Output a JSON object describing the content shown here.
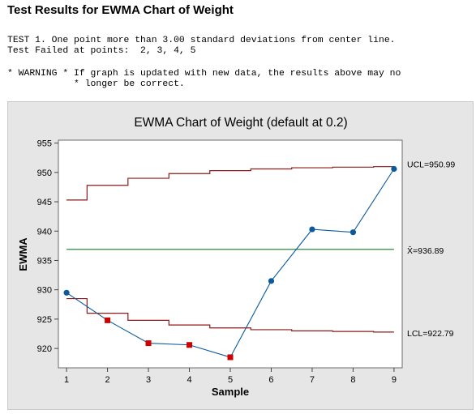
{
  "header": {
    "title": "Test Results for EWMA Chart of Weight",
    "test_line1": "TEST 1. One point more than 3.00 standard deviations from center line.",
    "test_line2": "Test Failed at points:  2, 3, 4, 5",
    "warning_line1": "* WARNING * If graph is updated with new data, the results above may no",
    "warning_line2": "            * longer be correct."
  },
  "chart_data": {
    "type": "line",
    "title": "EWMA Chart of Weight (default at 0.2)",
    "xlabel": "Sample",
    "ylabel": "EWMA",
    "x": [
      1,
      2,
      3,
      4,
      5,
      6,
      7,
      8,
      9
    ],
    "xlim": [
      0.8,
      9.2
    ],
    "ylim": [
      916.7,
      955.5
    ],
    "yticks": [
      920,
      925,
      930,
      935,
      940,
      945,
      950,
      955
    ],
    "xticks": [
      1,
      2,
      3,
      4,
      5,
      6,
      7,
      8,
      9
    ],
    "series": [
      {
        "values": [
          929.5,
          924.8,
          920.9,
          920.6,
          918.5,
          931.5,
          940.3,
          939.8,
          950.6
        ],
        "failed_points": [
          2,
          3,
          4,
          5
        ],
        "color": "#0b5a9e",
        "failed_color": "#cc0000"
      }
    ],
    "center_line": {
      "value": 936.89,
      "label": "X̄=936.89",
      "color": "#2e8b3a"
    },
    "ucl": {
      "values": [
        945.3,
        947.8,
        949.0,
        949.8,
        950.3,
        950.6,
        950.8,
        950.9,
        950.99
      ],
      "label": "UCL=950.99",
      "color": "#8b1a1a"
    },
    "lcl": {
      "values": [
        928.5,
        926.0,
        924.8,
        924.0,
        923.5,
        923.2,
        923.0,
        922.9,
        922.79
      ],
      "label": "LCL=922.79",
      "color": "#8b1a1a"
    }
  }
}
